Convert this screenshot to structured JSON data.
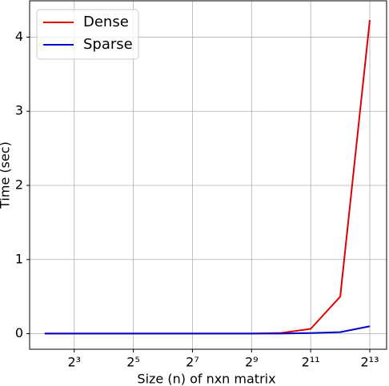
{
  "chart_data": {
    "type": "line",
    "xlabel": "Size (n) of nxn matrix",
    "ylabel": "Time (sec)",
    "x": [
      4,
      8,
      16,
      32,
      64,
      128,
      256,
      512,
      1024,
      2048,
      4096,
      8192
    ],
    "series": [
      {
        "name": "Dense",
        "color": "#e00000",
        "values": [
          0.001,
          0.001,
          0.001,
          0.001,
          0.001,
          0.001,
          0.001,
          0.002,
          0.01,
          0.065,
          0.5,
          4.23
        ]
      },
      {
        "name": "Sparse",
        "color": "#0000cc",
        "values": [
          0.001,
          0.001,
          0.001,
          0.001,
          0.001,
          0.001,
          0.001,
          0.001,
          0.002,
          0.008,
          0.02,
          0.1
        ]
      }
    ],
    "xscale": "log",
    "xlim": [
      2.81,
      12150
    ],
    "xticks": [
      {
        "value": 8,
        "label": "2³"
      },
      {
        "value": 32,
        "label": "2⁵"
      },
      {
        "value": 128,
        "label": "2⁷"
      },
      {
        "value": 512,
        "label": "2⁹"
      },
      {
        "value": 2048,
        "label": "2¹¹"
      },
      {
        "value": 8192,
        "label": "2¹³"
      }
    ],
    "ylim": [
      -0.21,
      4.49
    ],
    "yticks": [
      0,
      1,
      2,
      3,
      4
    ],
    "grid": true,
    "legend": "upper left"
  }
}
